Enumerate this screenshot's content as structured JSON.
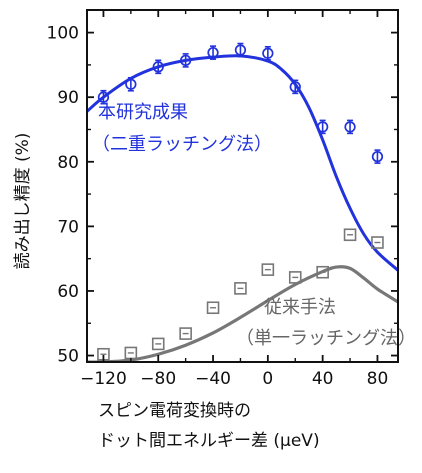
{
  "chart_data": {
    "type": "scatter",
    "title": "",
    "xlabel_lines": [
      "スピン電荷変換時の",
      "ドット間エネルギー差 (μeV)"
    ],
    "ylabel": "読み出し精度 (%)",
    "xlim": [
      -132,
      95
    ],
    "ylim": [
      49,
      103.5
    ],
    "x_ticks": [
      -120,
      -80,
      -40,
      0,
      40,
      80
    ],
    "x_tick_labels": [
      "−120",
      "−80",
      "−40",
      "0",
      "40",
      "80"
    ],
    "x_minor_ticks": [
      -100,
      -60,
      -20,
      20,
      60
    ],
    "y_ticks": [
      50,
      60,
      70,
      80,
      90,
      100
    ],
    "y_tick_labels": [
      "50",
      "60",
      "70",
      "80",
      "90",
      "100"
    ],
    "y_minor_ticks": [
      55,
      65,
      75,
      85,
      95
    ],
    "series": [
      {
        "name_lines": [
          "本研究成果",
          "（二重ラッチング法）"
        ],
        "color": "#2233dd",
        "marker": "circle-errorbar",
        "x": [
          -120,
          -100,
          -80,
          -60,
          -40,
          -20,
          0,
          20,
          40,
          60,
          80
        ],
        "y": [
          90.0,
          92.0,
          94.7,
          95.7,
          96.9,
          97.3,
          96.8,
          91.6,
          85.4,
          85.4,
          80.8
        ],
        "yerr": [
          0.4,
          0.4,
          0.4,
          0.4,
          0.5,
          0.5,
          0.6,
          0.6,
          0.9,
          0.8,
          1.0
        ],
        "fit_x": [
          -132,
          -120,
          -100,
          -80,
          -60,
          -40,
          -20,
          0,
          10,
          20,
          30,
          40,
          50,
          60,
          70,
          80,
          95
        ],
        "fit_y": [
          87.8,
          90.0,
          92.9,
          94.7,
          95.7,
          96.2,
          96.4,
          95.6,
          94.3,
          92.0,
          88.4,
          83.4,
          77.7,
          72.8,
          68.8,
          66.0,
          63.2
        ]
      },
      {
        "name_lines": [
          "従来手法",
          "（単一ラッチング法）"
        ],
        "color": "#777777",
        "marker": "square-dot",
        "x": [
          -120,
          -100,
          -80,
          -60,
          -40,
          -20,
          0,
          20,
          40,
          60,
          80
        ],
        "y": [
          50.2,
          50.4,
          51.8,
          53.4,
          57.4,
          60.4,
          63.3,
          62.1,
          62.9,
          68.7,
          67.5
        ],
        "fit_x": [
          -132,
          -120,
          -100,
          -80,
          -60,
          -40,
          -20,
          0,
          20,
          40,
          50,
          60,
          70,
          80,
          95
        ],
        "fit_y": [
          49.0,
          49.0,
          49.3,
          50.2,
          51.6,
          53.5,
          55.9,
          58.5,
          61.0,
          63.0,
          63.7,
          63.5,
          62.0,
          60.3,
          58.3
        ]
      }
    ]
  }
}
